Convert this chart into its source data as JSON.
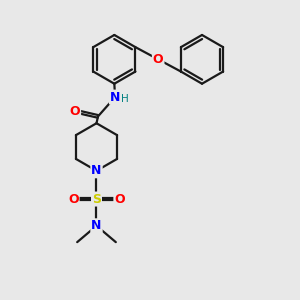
{
  "bg_color": "#e8e8e8",
  "bond_color": "#1a1a1a",
  "atom_colors": {
    "O": "#ff0000",
    "N": "#0000ff",
    "S": "#cccc00",
    "H": "#008080",
    "C": "#1a1a1a"
  },
  "line_width": 1.6,
  "font_size_atom": 9,
  "font_size_small": 7.5,
  "ring_r": 0.72,
  "pip_r": 0.72
}
